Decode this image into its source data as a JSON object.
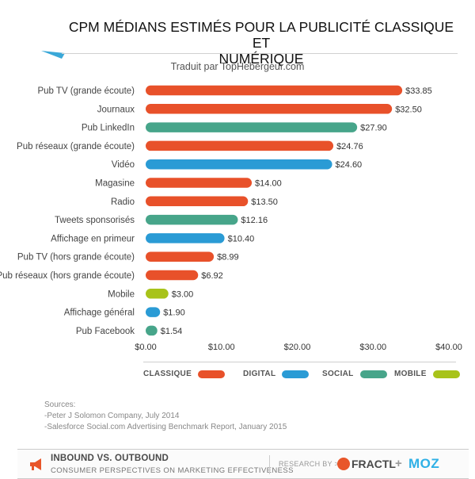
{
  "header": {
    "title_line1": "CPM MÉDIANS ESTIMÉS POUR LA PUBLICITÉ CLASSIQUE ET",
    "title_line2": "NUMÉRIQUE",
    "subtitle": "Traduit par TopHebergeur.com"
  },
  "colors": {
    "classique": "#e8512a",
    "digital": "#2a9bd5",
    "social": "#47a58a",
    "mobile": "#a8c31a"
  },
  "chart_data": {
    "type": "bar",
    "orientation": "horizontal",
    "title": "CPM MÉDIANS ESTIMÉS POUR LA PUBLICITÉ CLASSIQUE ET NUMÉRIQUE",
    "xlim": [
      0,
      40
    ],
    "x_ticks": [
      0,
      10,
      20,
      30,
      40
    ],
    "x_tick_labels": [
      "$0.00",
      "$10.00",
      "$20.00",
      "$30.00",
      "$40.00"
    ],
    "categories": [
      "Pub TV (grande écoute)",
      "Journaux",
      "Pub LinkedIn",
      "Pub réseaux (grande écoute)",
      "Vidéo",
      "Magasine",
      "Radio",
      "Tweets sponsorisés",
      "Affichage en primeur",
      "Pub TV (hors grande écoute)",
      "Pub réseaux (hors grande écoute)",
      "Mobile",
      "Affichage général",
      "Pub Facebook"
    ],
    "values": [
      33.85,
      32.5,
      27.9,
      24.76,
      24.6,
      14.0,
      13.5,
      12.16,
      10.4,
      8.99,
      6.92,
      3.0,
      1.9,
      1.54
    ],
    "value_labels": [
      "$33.85",
      "$32.50",
      "$27.90",
      "$24.76",
      "$24.60",
      "$14.00",
      "$13.50",
      "$12.16",
      "$10.40",
      "$8.99",
      "$6.92",
      "$3.00",
      "$1.90",
      "$1.54"
    ],
    "groups": [
      "classique",
      "classique",
      "social",
      "classique",
      "digital",
      "classique",
      "classique",
      "social",
      "digital",
      "classique",
      "classique",
      "mobile",
      "digital",
      "social"
    ],
    "legend": [
      {
        "key": "classique",
        "label": "CLASSIQUE"
      },
      {
        "key": "digital",
        "label": "DIGITAL"
      },
      {
        "key": "social",
        "label": "SOCIAL"
      },
      {
        "key": "mobile",
        "label": "MOBILE"
      }
    ],
    "legend_position": "bottom"
  },
  "sources": {
    "heading": "Sources:",
    "items": [
      "-Peter J Solomon Company, July 2014",
      "-Salesforce Social.com Advertising Benchmark Report, January 2015"
    ]
  },
  "footer": {
    "line1": "INBOUND VS. OUTBOUND",
    "line2": "CONSUMER PERSPECTIVES ON MARKETING EFFECTIVENESS",
    "research_by": "RESEARCH BY >",
    "fractl": "FRACTL",
    "plus": "+",
    "moz": "MOZ"
  }
}
